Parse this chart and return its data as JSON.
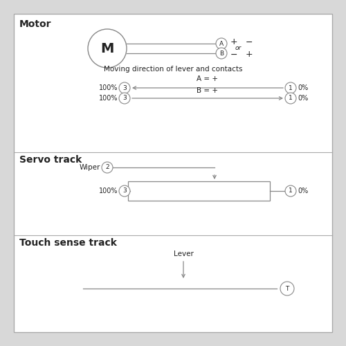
{
  "bg_color": "#d8d8d8",
  "panel_bg": "#ffffff",
  "line_color": "#888888",
  "text_color": "#222222",
  "border_color": "#aaaaaa",
  "title_motor": "Motor",
  "title_servo": "Servo track",
  "title_touch": "Touch sense track",
  "label_moving": "Moving direction of lever and contacts",
  "label_A_eq": "A = +",
  "label_B_eq": "B = +",
  "label_wiper": "Wiper",
  "label_lever": "Lever",
  "label_or": "or",
  "motor_symbol": "M",
  "terminal_A": "A",
  "terminal_B": "B",
  "terminal_1": "1",
  "terminal_2": "2",
  "terminal_3": "3",
  "terminal_T": "T",
  "pct_100": "100%",
  "pct_0": "0%",
  "plus": "+",
  "minus": "−"
}
